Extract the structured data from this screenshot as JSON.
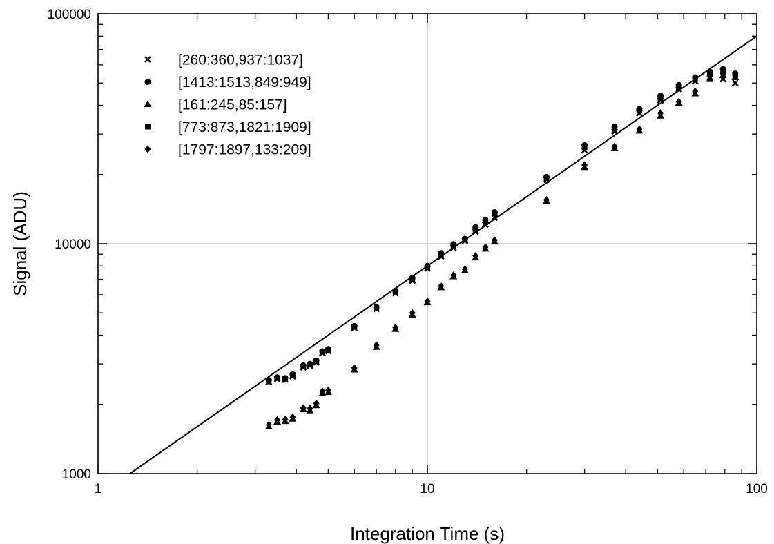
{
  "chart_data": {
    "type": "scatter",
    "title": "",
    "xlabel": "Integration Time (s)",
    "ylabel": "Signal (ADU)",
    "xscale": "log",
    "yscale": "log",
    "xlim": [
      1,
      100
    ],
    "ylim": [
      1000,
      100000
    ],
    "x_ticks": [
      1,
      10,
      100
    ],
    "x_tick_labels": [
      "1",
      "10",
      "100"
    ],
    "y_ticks": [
      1000,
      10000,
      100000
    ],
    "y_tick_labels": [
      "1000",
      "10000",
      "100000"
    ],
    "grid": "major",
    "legend": "top-left",
    "marker_color": "#000000",
    "grid_color": "#c0c0c0",
    "fit_line": {
      "x": [
        1.25,
        100
      ],
      "y": [
        1000,
        80000
      ]
    },
    "series": [
      {
        "name": "[260:360,937:1037]",
        "marker": "x",
        "x": [
          3.3,
          3.5,
          3.7,
          3.9,
          4.2,
          4.4,
          4.6,
          4.8,
          5.0,
          6.0,
          7.0,
          8.0,
          9.0,
          10.0,
          11.0,
          12.0,
          13.0,
          14.0,
          15.0,
          16.0,
          23.0,
          30.0,
          37.0,
          44.0,
          51.0,
          58.0,
          65.0,
          72.0,
          79.0,
          86.0
        ],
        "y": [
          2500,
          2580,
          2560,
          2650,
          2900,
          2950,
          3050,
          3350,
          3420,
          4300,
          5200,
          6100,
          6900,
          7800,
          8800,
          9600,
          10300,
          11300,
          12100,
          13000,
          19000,
          25500,
          30800,
          37000,
          42000,
          47000,
          51000,
          53000,
          52000,
          50000
        ]
      },
      {
        "name": "[1413:1513,849:949]",
        "marker": "circle",
        "x": [
          3.3,
          3.5,
          3.7,
          3.9,
          4.2,
          4.4,
          4.6,
          4.8,
          5.0,
          6.0,
          7.0,
          8.0,
          9.0,
          10.0,
          11.0,
          12.0,
          13.0,
          14.0,
          15.0,
          16.0,
          23.0,
          30.0,
          37.0,
          44.0,
          51.0,
          58.0,
          65.0,
          72.0,
          79.0,
          86.0
        ],
        "y": [
          2550,
          2620,
          2600,
          2700,
          2950,
          3000,
          3100,
          3400,
          3480,
          4380,
          5300,
          6250,
          7100,
          8000,
          9100,
          9950,
          10500,
          11800,
          12700,
          13700,
          19500,
          26800,
          32300,
          38500,
          44000,
          49000,
          53000,
          56000,
          57500,
          55000
        ]
      },
      {
        "name": "[161:245,85:157]",
        "marker": "triangle",
        "x": [
          3.3,
          3.5,
          3.7,
          3.9,
          4.2,
          4.4,
          4.6,
          4.8,
          5.0,
          6.0,
          7.0,
          8.0,
          9.0,
          10.0,
          11.0,
          12.0,
          13.0,
          14.0,
          15.0,
          16.0,
          23.0,
          30.0,
          37.0,
          44.0,
          51.0,
          58.0,
          65.0,
          72.0,
          79.0,
          86.0
        ],
        "y": [
          1600,
          1680,
          1690,
          1730,
          1900,
          1880,
          1980,
          2230,
          2260,
          2830,
          3550,
          4250,
          4900,
          5550,
          6450,
          7200,
          7650,
          8700,
          9500,
          10200,
          15300,
          21500,
          26000,
          31000,
          36000,
          41000,
          45000,
          52000,
          54000,
          53000
        ]
      },
      {
        "name": "[773:873,1821:1909]",
        "marker": "square",
        "x": [
          3.3,
          3.5,
          3.7,
          3.9,
          4.2,
          4.4,
          4.6,
          4.8,
          5.0,
          6.0,
          7.0,
          8.0,
          9.0,
          10.0,
          11.0,
          12.0,
          13.0,
          14.0,
          15.0,
          16.0,
          23.0,
          30.0,
          37.0,
          44.0,
          51.0,
          58.0,
          65.0,
          72.0,
          79.0,
          86.0
        ],
        "y": [
          2520,
          2600,
          2580,
          2680,
          2920,
          2980,
          3080,
          3380,
          3450,
          4350,
          5250,
          6200,
          7000,
          7900,
          8950,
          9800,
          10400,
          11500,
          12400,
          13400,
          19300,
          26200,
          31500,
          38000,
          43000,
          48000,
          52000,
          54500,
          55500,
          53000
        ]
      },
      {
        "name": "[1797:1897,133:209]",
        "marker": "diamond",
        "x": [
          3.3,
          3.5,
          3.7,
          3.9,
          4.2,
          4.4,
          4.6,
          4.8,
          5.0,
          6.0,
          7.0,
          8.0,
          9.0,
          10.0,
          11.0,
          12.0,
          13.0,
          14.0,
          15.0,
          16.0,
          23.0,
          30.0,
          37.0,
          44.0,
          51.0,
          58.0,
          65.0,
          72.0,
          79.0,
          86.0
        ],
        "y": [
          1630,
          1710,
          1720,
          1760,
          1930,
          1920,
          2020,
          2280,
          2300,
          2880,
          3620,
          4320,
          5000,
          5620,
          6550,
          7300,
          7750,
          8850,
          9650,
          10350,
          15500,
          22000,
          26500,
          31500,
          37000,
          41500,
          46000,
          53500,
          55000,
          54000
        ]
      }
    ]
  }
}
